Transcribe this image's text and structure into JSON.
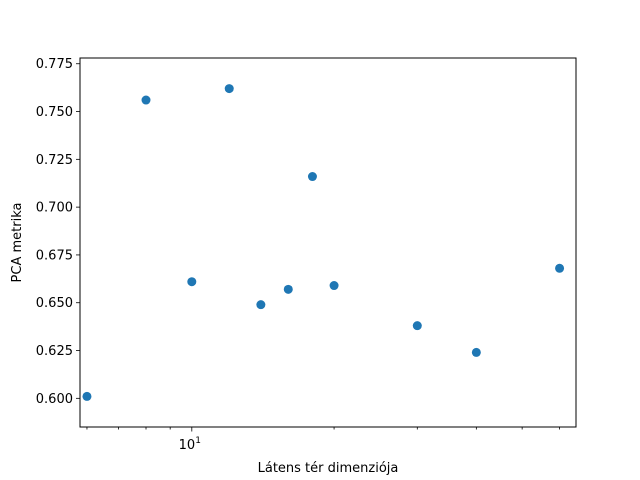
{
  "chart_data": {
    "type": "scatter",
    "title": "",
    "xlabel": "Látens tér dimenziója",
    "ylabel": "PCA metrika",
    "xscale": "log",
    "xlim": [
      5.8,
      65
    ],
    "ylim": [
      0.585,
      0.778
    ],
    "grid": false,
    "x_tick_labels": [
      {
        "value": 10,
        "base": "10",
        "exp": "1"
      }
    ],
    "y_ticks": [
      0.6,
      0.625,
      0.65,
      0.675,
      0.7,
      0.725,
      0.75,
      0.775
    ],
    "y_tick_labels": [
      "0.600",
      "0.625",
      "0.650",
      "0.675",
      "0.700",
      "0.725",
      "0.750",
      "0.775"
    ],
    "marker_color": "#1f77b4",
    "points": [
      {
        "x": 6,
        "y": 0.601
      },
      {
        "x": 8,
        "y": 0.756
      },
      {
        "x": 10,
        "y": 0.661
      },
      {
        "x": 12,
        "y": 0.762
      },
      {
        "x": 14,
        "y": 0.649
      },
      {
        "x": 16,
        "y": 0.657
      },
      {
        "x": 18,
        "y": 0.716
      },
      {
        "x": 20,
        "y": 0.659
      },
      {
        "x": 30,
        "y": 0.638
      },
      {
        "x": 40,
        "y": 0.624
      },
      {
        "x": 60,
        "y": 0.668
      }
    ]
  }
}
